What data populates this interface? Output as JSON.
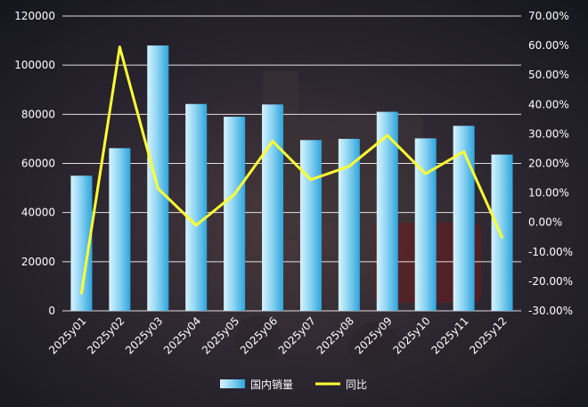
{
  "chart_data": {
    "type": "bar",
    "title": "",
    "categories": [
      "2025y01",
      "2025y02",
      "2025y03",
      "2025y04",
      "2025y05",
      "2025y06",
      "2025y07",
      "2025y08",
      "2025y09",
      "2025y10",
      "2025y11",
      "2025y12"
    ],
    "series": [
      {
        "name": "国内销量",
        "type": "bar",
        "axis": "left",
        "values": [
          55000,
          66200,
          108000,
          84200,
          79000,
          84000,
          69500,
          70000,
          81000,
          70200,
          75300,
          63600
        ]
      },
      {
        "name": "同比",
        "type": "line",
        "axis": "right",
        "values": [
          -24.0,
          59.5,
          11.5,
          -1.0,
          9.5,
          27.5,
          14.5,
          19.0,
          29.5,
          16.5,
          24.0,
          -5.0
        ]
      }
    ],
    "y_left": {
      "min": 0,
      "max": 120000,
      "ticks": [
        "0",
        "20000",
        "40000",
        "60000",
        "80000",
        "100000",
        "120000"
      ]
    },
    "y_right": {
      "min": -30,
      "max": 70,
      "ticks": [
        "-30.00%",
        "-20.00%",
        "-10.00%",
        "0.00%",
        "10.00%",
        "20.00%",
        "30.00%",
        "40.00%",
        "50.00%",
        "60.00%",
        "70.00%"
      ]
    },
    "grid": true,
    "legend_position": "bottom",
    "colors": {
      "bar_light": "#c6ecfa",
      "bar_dark": "#3eb2e6",
      "line": "#ffff33",
      "grid": "#ffffff",
      "text": "#ffffff"
    }
  }
}
